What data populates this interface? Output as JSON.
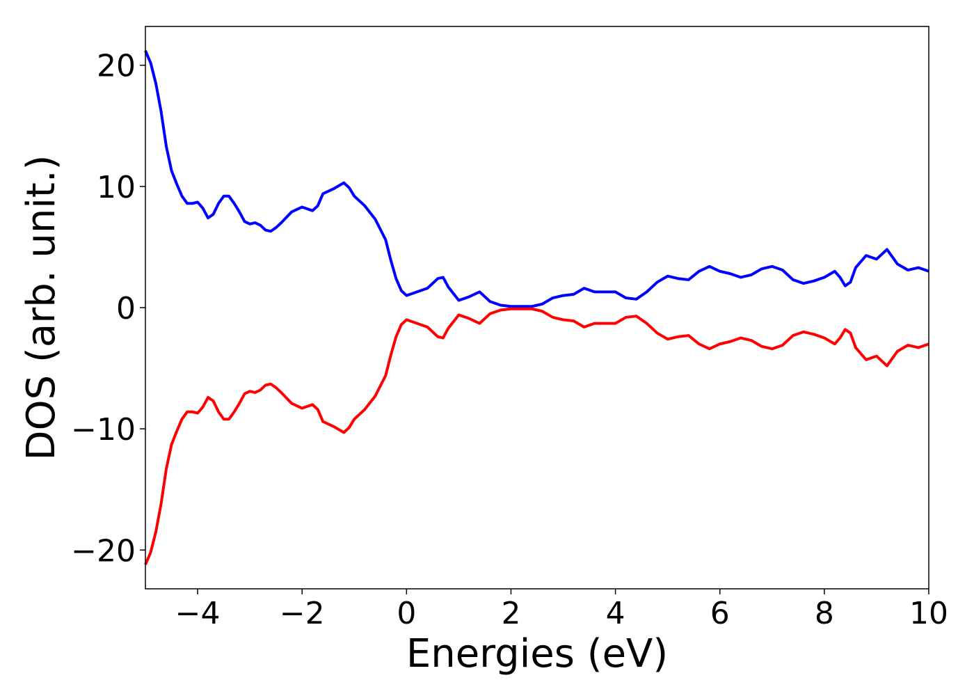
{
  "chart_data": {
    "type": "line",
    "xlabel": "Energies (eV)",
    "ylabel": "DOS (arb. unit.)",
    "xlim": [
      -5,
      10
    ],
    "ylim": [
      -23.2,
      23.2
    ],
    "xticks": [
      {
        "value": -4,
        "label": "−4"
      },
      {
        "value": -2,
        "label": "−2"
      },
      0,
      2,
      4,
      6,
      8,
      10
    ],
    "yticks": [
      {
        "value": -20,
        "label": "−20"
      },
      {
        "value": -10,
        "label": "−10"
      },
      0,
      10,
      20
    ],
    "x": [
      -5,
      -4.9,
      -4.8,
      -4.7,
      -4.6,
      -4.5,
      -4.4,
      -4.3,
      -4.2,
      -4.1,
      -4.0,
      -3.9,
      -3.8,
      -3.7,
      -3.6,
      -3.5,
      -3.4,
      -3.3,
      -3.2,
      -3.1,
      -3.0,
      -2.9,
      -2.8,
      -2.7,
      -2.6,
      -2.5,
      -2.4,
      -2.2,
      -2.0,
      -1.8,
      -1.7,
      -1.6,
      -1.4,
      -1.2,
      -1.1,
      -1.0,
      -0.8,
      -0.6,
      -0.4,
      -0.3,
      -0.2,
      -0.1,
      0.0,
      0.2,
      0.4,
      0.6,
      0.7,
      0.8,
      1.0,
      1.2,
      1.4,
      1.6,
      1.8,
      2.0,
      2.4,
      2.6,
      2.8,
      3.0,
      3.2,
      3.4,
      3.6,
      3.8,
      4.0,
      4.2,
      4.4,
      4.6,
      4.8,
      5.0,
      5.2,
      5.4,
      5.6,
      5.8,
      6.0,
      6.2,
      6.4,
      6.6,
      6.8,
      7.0,
      7.2,
      7.4,
      7.6,
      7.8,
      8.0,
      8.2,
      8.3,
      8.4,
      8.5,
      8.6,
      8.8,
      9.0,
      9.2,
      9.4,
      9.6,
      9.8,
      10.0
    ],
    "series": [
      {
        "color": "#0000ff",
        "values": [
          21.2,
          20.2,
          18.5,
          16.2,
          13.3,
          11.3,
          10.2,
          9.2,
          8.6,
          8.6,
          8.7,
          8.2,
          7.4,
          7.7,
          8.6,
          9.2,
          9.2,
          8.6,
          7.9,
          7.1,
          6.9,
          7.0,
          6.8,
          6.4,
          6.3,
          6.6,
          7.0,
          7.9,
          8.3,
          8.0,
          8.4,
          9.4,
          9.8,
          10.3,
          9.9,
          9.2,
          8.4,
          7.3,
          5.6,
          3.9,
          2.4,
          1.4,
          1.0,
          1.3,
          1.6,
          2.4,
          2.5,
          1.7,
          0.6,
          0.9,
          1.3,
          0.5,
          0.2,
          0.1,
          0.1,
          0.3,
          0.8,
          1.0,
          1.1,
          1.6,
          1.3,
          1.3,
          1.3,
          0.8,
          0.7,
          1.3,
          2.1,
          2.6,
          2.4,
          2.3,
          3.0,
          3.4,
          3.0,
          2.8,
          2.5,
          2.7,
          3.2,
          3.4,
          3.1,
          2.3,
          2.0,
          2.2,
          2.5,
          3.0,
          2.5,
          1.8,
          2.1,
          3.3,
          4.3,
          4.0,
          4.8,
          3.6,
          3.1,
          3.3,
          3.0
        ]
      },
      {
        "color": "#ff0000",
        "values": [
          -21.2,
          -20.2,
          -18.5,
          -16.2,
          -13.3,
          -11.3,
          -10.2,
          -9.2,
          -8.6,
          -8.6,
          -8.7,
          -8.2,
          -7.4,
          -7.7,
          -8.6,
          -9.2,
          -9.2,
          -8.6,
          -7.9,
          -7.1,
          -6.9,
          -7.0,
          -6.8,
          -6.4,
          -6.3,
          -6.6,
          -7.0,
          -7.9,
          -8.3,
          -8.0,
          -8.4,
          -9.4,
          -9.8,
          -10.3,
          -9.9,
          -9.2,
          -8.4,
          -7.3,
          -5.6,
          -3.9,
          -2.4,
          -1.4,
          -1.0,
          -1.3,
          -1.6,
          -2.4,
          -2.5,
          -1.7,
          -0.6,
          -0.9,
          -1.3,
          -0.5,
          -0.2,
          -0.1,
          -0.1,
          -0.3,
          -0.8,
          -1.0,
          -1.1,
          -1.6,
          -1.3,
          -1.3,
          -1.3,
          -0.8,
          -0.7,
          -1.3,
          -2.1,
          -2.6,
          -2.4,
          -2.3,
          -3.0,
          -3.4,
          -3.0,
          -2.8,
          -2.5,
          -2.7,
          -3.2,
          -3.4,
          -3.1,
          -2.3,
          -2.0,
          -2.2,
          -2.5,
          -3.0,
          -2.5,
          -1.8,
          -2.1,
          -3.3,
          -4.3,
          -4.0,
          -4.8,
          -3.6,
          -3.1,
          -3.3,
          -3.0
        ]
      }
    ]
  }
}
